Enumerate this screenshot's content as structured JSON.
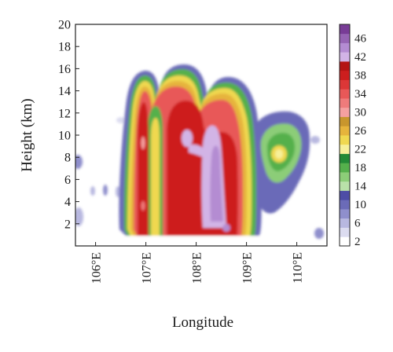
{
  "chart_data": {
    "type": "heatmap",
    "title": "",
    "xlabel": "Longitude",
    "ylabel": "Height (km)",
    "xlim": [
      105.6,
      110.6
    ],
    "ylim": [
      0,
      20
    ],
    "x_ticks": [
      106,
      107,
      108,
      109,
      110
    ],
    "x_tick_labels": [
      "106°E",
      "107°E",
      "108°E",
      "109°E",
      "110°E"
    ],
    "y_ticks": [
      2,
      4,
      6,
      8,
      10,
      12,
      14,
      16,
      18,
      20
    ],
    "y_tick_labels": [
      "2",
      "4",
      "6",
      "8",
      "10",
      "12",
      "14",
      "16",
      "18",
      "20"
    ],
    "grid": false,
    "legend": "colorbar-right",
    "colorbar": {
      "levels": [
        2,
        4,
        6,
        8,
        10,
        12,
        14,
        16,
        18,
        20,
        22,
        24,
        26,
        28,
        30,
        32,
        34,
        36,
        38,
        40,
        42,
        44,
        46,
        48
      ],
      "tick_labels": [
        "2",
        "6",
        "10",
        "14",
        "18",
        "22",
        "26",
        "30",
        "34",
        "38",
        "42",
        "46"
      ],
      "colors": [
        "#ffffff",
        "#dcdcf0",
        "#b8b8e0",
        "#8f8fcc",
        "#6b6bb8",
        "#4d4da6",
        "#b9e1a9",
        "#8ccd78",
        "#55b04c",
        "#238a36",
        "#f7f09a",
        "#f0d850",
        "#e6b43c",
        "#c8962d",
        "#f5a0a0",
        "#ef7b7b",
        "#e85858",
        "#dc3737",
        "#cd1e1e",
        "#b41414",
        "#d2b4e6",
        "#b48cd2",
        "#9664b4",
        "#783c96"
      ]
    },
    "cells": [
      {
        "lon_range": [
          106.38,
          106.52
        ],
        "height_range": [
          1.5,
          10.0
        ],
        "value": 4
      },
      {
        "lon_range": [
          106.52,
          106.62
        ],
        "height_range": [
          1.5,
          15.0
        ],
        "value": 10
      },
      {
        "lon_range": [
          106.62,
          106.98
        ],
        "height_range": [
          1.0,
          15.5
        ],
        "value": 38
      },
      {
        "lon_range": [
          106.98,
          107.25
        ],
        "height_range": [
          1.0,
          15.0
        ],
        "value": 14
      },
      {
        "lon_range": [
          107.25,
          108.95
        ],
        "height_range": [
          1.0,
          16.5
        ],
        "value": 36
      },
      {
        "lon_range": [
          108.95,
          109.2
        ],
        "height_range": [
          1.5,
          12.0
        ],
        "value": 8
      },
      {
        "lon_range": [
          109.2,
          110.0
        ],
        "height_range": [
          3.0,
          11.0
        ],
        "value": 12
      },
      {
        "lon_range": [
          109.45,
          109.75
        ],
        "height_range": [
          7.5,
          9.0
        ],
        "value": 22
      },
      {
        "lon_range": [
          107.75,
          108.4
        ],
        "height_range": [
          2.0,
          11.0
        ],
        "value": 42
      }
    ]
  }
}
